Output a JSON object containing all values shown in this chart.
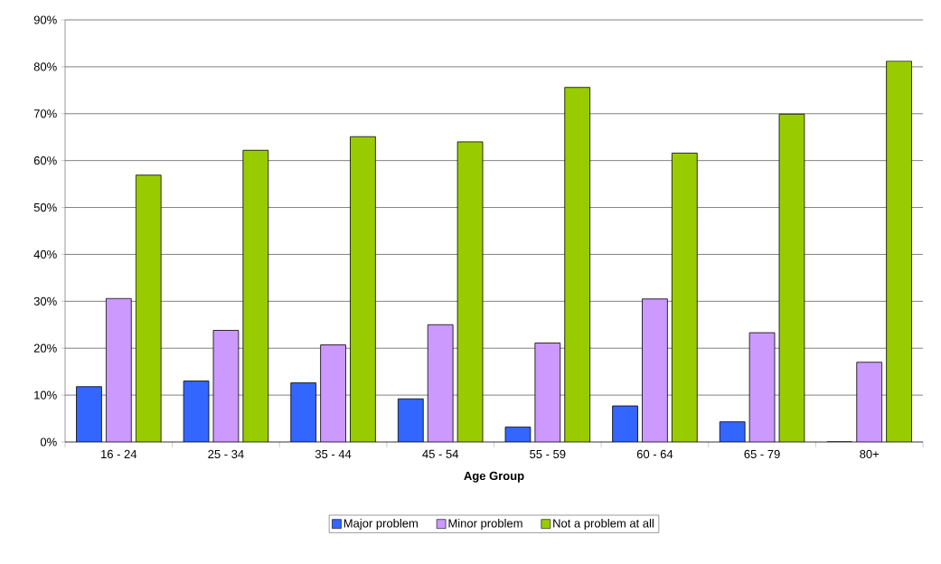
{
  "chart_data": {
    "type": "bar",
    "xlabel": "Age Group",
    "categories": [
      "16 - 24",
      "25 - 34",
      "35 - 44",
      "45 - 54",
      "55 - 59",
      "60 - 64",
      "65 - 79",
      "80+"
    ],
    "series": [
      {
        "name": "Major problem",
        "color": "#3366ff",
        "values": [
          11.8,
          13.0,
          12.6,
          9.2,
          3.2,
          7.7,
          4.3,
          0
        ]
      },
      {
        "name": "Minor problem",
        "color": "#cc99ff",
        "values": [
          30.6,
          23.8,
          20.7,
          25.0,
          21.1,
          30.5,
          23.3,
          17.0
        ]
      },
      {
        "name": "Not a problem at all",
        "color": "#99cc00",
        "values": [
          56.9,
          62.2,
          65.1,
          64.0,
          75.6,
          61.6,
          69.9,
          81.2
        ]
      }
    ],
    "ylim": [
      0,
      90
    ],
    "yticks": [
      {
        "value": 0,
        "label": "0%"
      },
      {
        "value": 10,
        "label": "10%"
      },
      {
        "value": 20,
        "label": "20%"
      },
      {
        "value": 30,
        "label": "30%"
      },
      {
        "value": 40,
        "label": "40%"
      },
      {
        "value": 50,
        "label": "50%"
      },
      {
        "value": 60,
        "label": "60%"
      },
      {
        "value": 70,
        "label": "70%"
      },
      {
        "value": 80,
        "label": "80%"
      },
      {
        "value": 90,
        "label": "90%"
      }
    ],
    "grid": "y",
    "legend": "bottom"
  }
}
